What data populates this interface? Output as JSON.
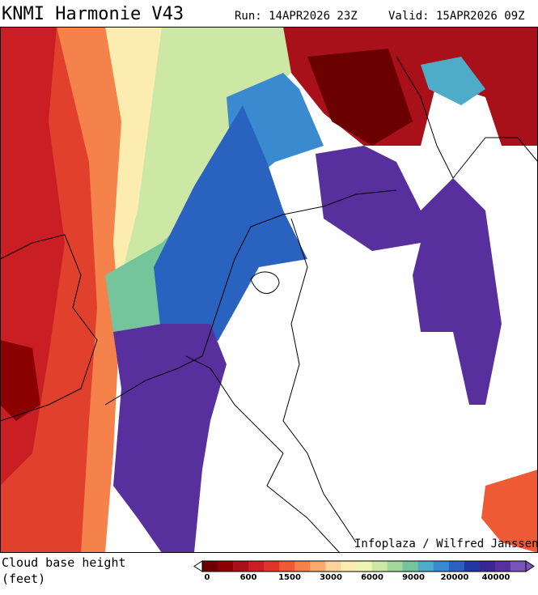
{
  "header": {
    "title": "KNMI Harmonie V43",
    "run": "Run: 14APR2026 23Z",
    "valid": "Valid: 15APR2026 09Z"
  },
  "map": {
    "credit": "Infoplaza / Wilfred Janssen"
  },
  "legend": {
    "label_line1": "Cloud base height",
    "label_line2": "(feet)",
    "colors": [
      "#6b0000",
      "#8b0000",
      "#a8101a",
      "#c81e24",
      "#e03428",
      "#ee5a36",
      "#f4824a",
      "#f8aa6e",
      "#fcd49a",
      "#fcecb0",
      "#eef6b4",
      "#cce8a4",
      "#a4d89a",
      "#74c49c",
      "#4eacc8",
      "#3a8ad0",
      "#2a62c0",
      "#2038a0",
      "#3a2690",
      "#58309e",
      "#7a54b8"
    ],
    "ticks": [
      0,
      600,
      1500,
      3000,
      6000,
      9000,
      20000,
      40000
    ]
  }
}
